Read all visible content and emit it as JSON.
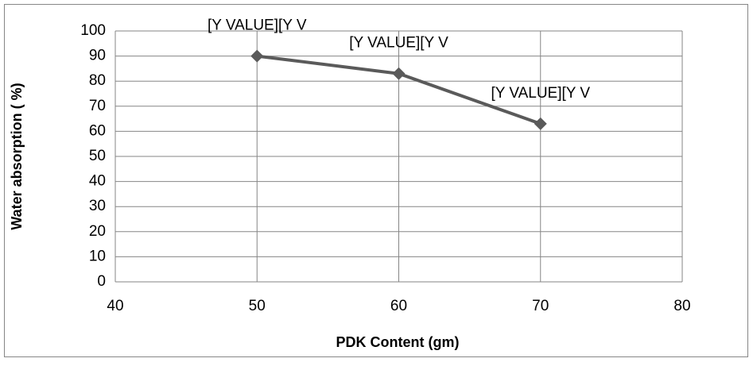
{
  "chart_data": {
    "type": "line",
    "x_label": "PDK Content (gm)",
    "y_label": "Water absorption ( %)",
    "x": [
      50,
      60,
      70
    ],
    "series": [
      {
        "color": "#5a5a5a",
        "values": [
          90,
          83,
          63
        ],
        "value_labels": [
          "[Y VALUE][Y V",
          "[Y VALUE][Y V",
          "[Y VALUE][Y V"
        ]
      }
    ],
    "xlim": [
      40,
      80
    ],
    "xticks": [
      40,
      50,
      60,
      70,
      80
    ],
    "ylim": [
      0,
      100
    ],
    "yticks": [
      0,
      10,
      20,
      30,
      40,
      50,
      60,
      70,
      80,
      90,
      100
    ],
    "grid": true
  }
}
